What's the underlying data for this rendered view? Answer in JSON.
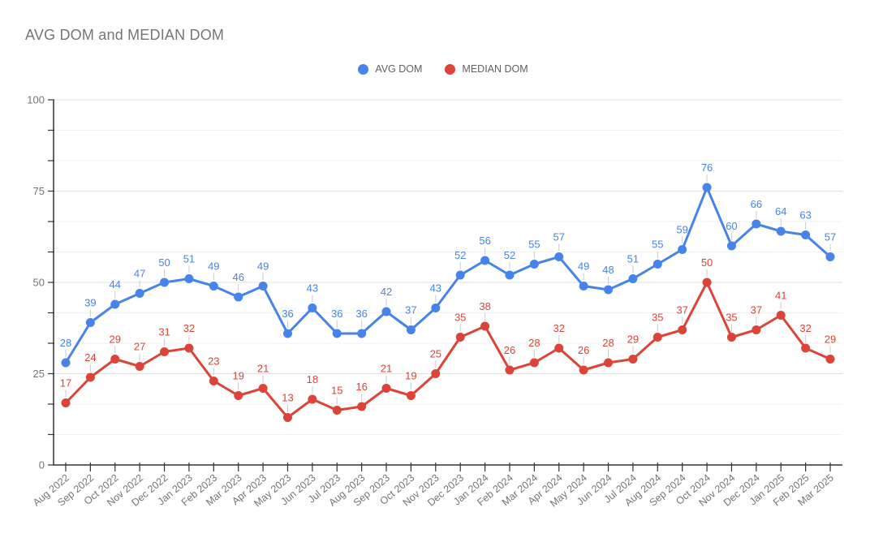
{
  "chart_data": {
    "type": "line",
    "title": "AVG DOM and MEDIAN DOM",
    "categories": [
      "Aug 2022",
      "Sep 2022",
      "Oct 2022",
      "Nov 2022",
      "Dec 2022",
      "Jan 2023",
      "Feb 2023",
      "Mar 2023",
      "Apr 2023",
      "May 2023",
      "Jun 2023",
      "Jul 2023",
      "Aug 2023",
      "Sep 2023",
      "Oct 2023",
      "Nov 2023",
      "Dec 2023",
      "Jan 2024",
      "Feb 2024",
      "Mar 2024",
      "Apr 2024",
      "May 2024",
      "Jun 2024",
      "Jul 2024",
      "Aug 2024",
      "Sep 2024",
      "Oct 2024",
      "Nov 2024",
      "Dec 2024",
      "Jan 2025",
      "Feb 2025",
      "Mar 2025"
    ],
    "series": [
      {
        "name": "AVG DOM",
        "color": "#4683ea",
        "values": [
          28,
          39,
          44,
          47,
          50,
          51,
          49,
          46,
          49,
          36,
          43,
          36,
          36,
          42,
          37,
          43,
          52,
          56,
          52,
          55,
          57,
          49,
          48,
          51,
          55,
          59,
          76,
          60,
          66,
          64,
          63,
          57
        ]
      },
      {
        "name": "MEDIAN DOM",
        "color": "#db4437",
        "values": [
          17,
          24,
          29,
          27,
          31,
          32,
          23,
          19,
          21,
          13,
          18,
          15,
          16,
          21,
          19,
          25,
          35,
          38,
          26,
          28,
          32,
          26,
          28,
          29,
          35,
          37,
          50,
          35,
          37,
          41,
          32,
          29
        ]
      }
    ],
    "xlabel": "",
    "ylabel": "",
    "ylim": [
      0,
      100
    ],
    "yticks": [
      0,
      25,
      50,
      75,
      100
    ],
    "grid": "on",
    "minor_grid_divisions": 3,
    "legend_position": "top",
    "point_labels": true
  },
  "style": {
    "axis_color": "#333333",
    "major_grid_color": "#e2e2e2",
    "minor_grid_color": "#f2f2f2",
    "tick_label_color": "#757575",
    "label_stem_color": "#cccccc",
    "title_color": "#757575"
  }
}
